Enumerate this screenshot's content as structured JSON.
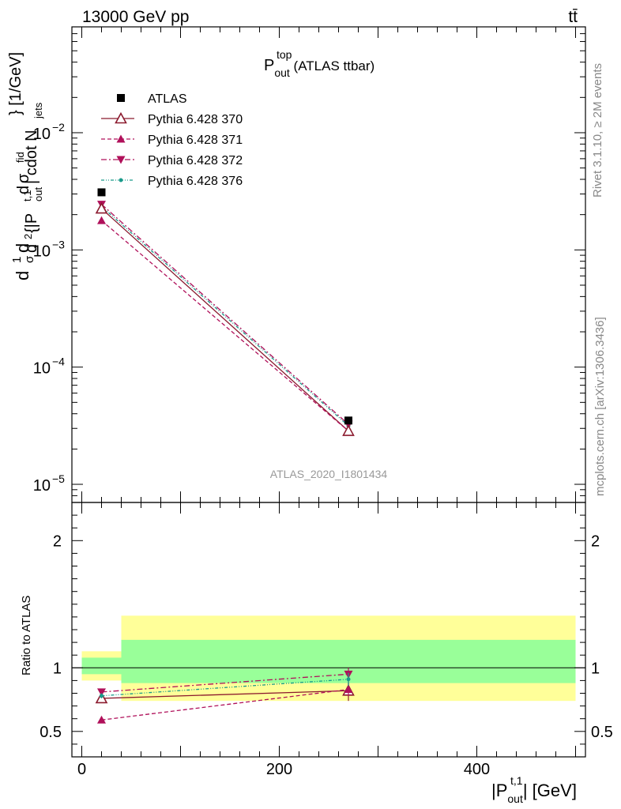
{
  "header": {
    "energy_label": "13000 GeV pp",
    "process_label": "tt̄"
  },
  "side_labels": {
    "rivet": "Rivet 3.1.10, ≥ 2M events",
    "mcplots": "mcplots.cern.ch [arXiv:1306.3436]"
  },
  "colors": {
    "data": "#000000",
    "py370": "#8b1a2e",
    "py371": "#b0105a",
    "py372": "#b0105a",
    "py376": "#1a9a8a",
    "band_inner": "#99ff99",
    "band_outer": "#ffff99"
  },
  "chart_data": [
    {
      "type": "line",
      "panel": "main",
      "title_main": "P",
      "title_sup": "top",
      "title_sub": "out",
      "title_suffix": " (ATLAS ttbar)",
      "watermark": "ATLAS_2020_I1801434",
      "ylabel": "d 1/σ d σ^fid / d^2 {|P_out^t,1| cdot N_jets} [1/GeV]",
      "ylabel_parts": [
        "d",
        "1",
        "σ",
        "d",
        "d",
        "σ",
        "fid",
        "d",
        "2",
        "{|P",
        "t,1",
        "out",
        "| cdot N",
        "jets",
        "} [1/GeV]"
      ],
      "yscale": "log",
      "ylim": [
        7e-06,
        0.08
      ],
      "yticks": [
        {
          "value": 0.01,
          "base": "10",
          "exp": "−2"
        },
        {
          "value": 0.001,
          "base": "10",
          "exp": "−3"
        },
        {
          "value": 0.0001,
          "base": "10",
          "exp": "−4"
        },
        {
          "value": 1e-05,
          "base": "10",
          "exp": "−5"
        }
      ],
      "xlim": [
        -10,
        510
      ],
      "legend_placement": "top-left",
      "series": [
        {
          "name": "ATLAS",
          "key": "data",
          "x": [
            20,
            270
          ],
          "y": [
            0.0031,
            3.5e-05
          ],
          "marker": "square",
          "line": "none"
        },
        {
          "name": "Pythia 6.428 370",
          "key": "py370",
          "x": [
            20,
            270
          ],
          "y": [
            0.00225,
            2.85e-05
          ],
          "marker": "triangle-up-open",
          "line": "solid"
        },
        {
          "name": "Pythia 6.428 371",
          "key": "py371",
          "x": [
            20,
            270
          ],
          "y": [
            0.00178,
            2.85e-05
          ],
          "marker": "triangle-up",
          "line": "dashed"
        },
        {
          "name": "Pythia 6.428 372",
          "key": "py372",
          "x": [
            20,
            270
          ],
          "y": [
            0.00245,
            3.25e-05
          ],
          "marker": "triangle-down",
          "line": "dashdot"
        },
        {
          "name": "Pythia 6.428 376",
          "key": "py376",
          "x": [
            20,
            270
          ],
          "y": [
            0.00235,
            3.15e-05
          ],
          "marker": "dot",
          "line": "dashdotdot"
        }
      ]
    },
    {
      "type": "line",
      "panel": "ratio",
      "ylabel": "Ratio to ATLAS",
      "xlabel_main": "|P",
      "xlabel_sup": "t,1",
      "xlabel_sub": "out",
      "xlabel_suffix": "| [GeV]",
      "ylim": [
        0.3,
        2.3
      ],
      "yticks": [
        0.5,
        1,
        2
      ],
      "ytick_labels": [
        "0.5",
        "1",
        "2"
      ],
      "xlim": [
        -10,
        510
      ],
      "xticks": [
        0,
        200,
        400
      ],
      "xtick_labels": [
        "0",
        "200",
        "400"
      ],
      "bands": [
        {
          "x0": 0,
          "x1": 40,
          "inner": [
            0.95,
            1.08
          ],
          "outer": [
            0.9,
            1.13
          ]
        },
        {
          "x0": 40,
          "x1": 500,
          "inner": [
            0.88,
            1.22
          ],
          "outer": [
            0.74,
            1.41
          ]
        }
      ],
      "series": [
        {
          "name": "Pythia 6.428 370",
          "key": "py370",
          "x": [
            20,
            270
          ],
          "y": [
            0.76,
            0.82
          ],
          "err": [
            0.02,
            0.08
          ],
          "marker": "triangle-up-open",
          "line": "solid"
        },
        {
          "name": "Pythia 6.428 371",
          "key": "py371",
          "x": [
            20,
            270
          ],
          "y": [
            0.59,
            0.83
          ],
          "err": [
            0.02,
            0.05
          ],
          "marker": "triangle-up",
          "line": "dashed"
        },
        {
          "name": "Pythia 6.428 372",
          "key": "py372",
          "x": [
            20,
            270
          ],
          "y": [
            0.81,
            0.95
          ],
          "err": [
            0.02,
            0.05
          ],
          "marker": "triangle-down",
          "line": "dashdot"
        },
        {
          "name": "Pythia 6.428 376",
          "key": "py376",
          "x": [
            20,
            270
          ],
          "y": [
            0.78,
            0.91
          ],
          "err": [
            0.02,
            0.05
          ],
          "marker": "dot",
          "line": "dashdotdot"
        }
      ]
    }
  ]
}
